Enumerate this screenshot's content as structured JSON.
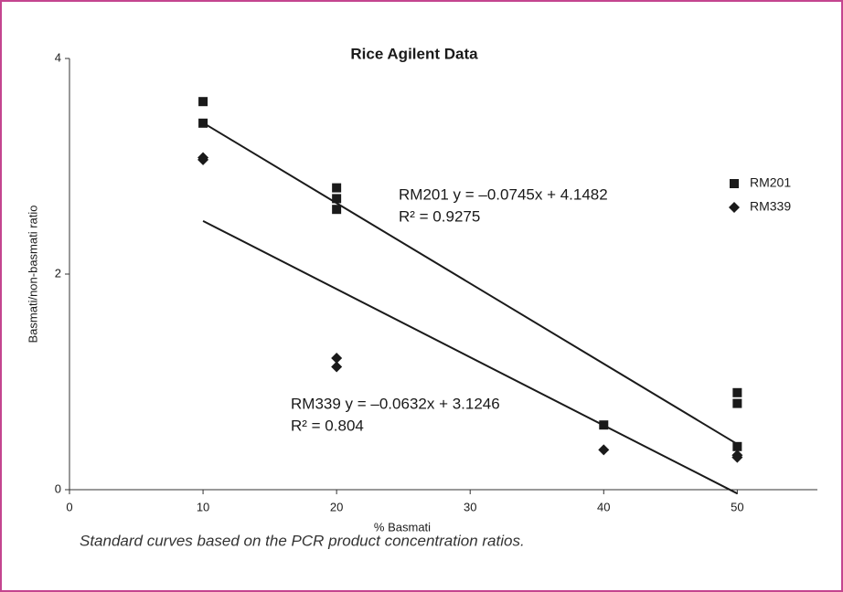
{
  "chart_data": {
    "type": "scatter",
    "title": "Rice Agilent Data",
    "x_label": "% Basmati",
    "y_label": "Basmati/non-basmati ratio",
    "caption": "Standard curves based on the PCR product concentration ratios.",
    "xlim": [
      0,
      56
    ],
    "ylim": [
      0,
      4
    ],
    "xticks": [
      0,
      10,
      20,
      30,
      40,
      50
    ],
    "yticks": [
      0,
      2,
      4
    ],
    "grid": false,
    "legend": "right",
    "series": [
      {
        "name": "RM201",
        "marker": "square",
        "color": "#1a1a1a",
        "x": [
          10,
          10,
          20,
          20,
          20,
          40,
          50,
          50,
          50
        ],
        "values": [
          3.6,
          3.4,
          2.8,
          2.7,
          2.6,
          0.6,
          0.9,
          0.8,
          0.4
        ]
      },
      {
        "name": "RM339",
        "marker": "diamond",
        "color": "#1a1a1a",
        "x": [
          10,
          10,
          20,
          20,
          40,
          50,
          50
        ],
        "values": [
          3.08,
          3.06,
          1.22,
          1.14,
          0.37,
          0.32,
          0.3
        ]
      }
    ],
    "trendlines": [
      {
        "slope": -0.0745,
        "intercept": 4.1482,
        "equation": "RM201 y = –0.0745x + 4.1482",
        "r2_label": "R² = 0.9275"
      },
      {
        "slope": -0.0632,
        "intercept": 3.1246,
        "equation": "RM339 y = –0.0632x + 3.1246",
        "r2_label": "R² = 0.804"
      }
    ]
  }
}
